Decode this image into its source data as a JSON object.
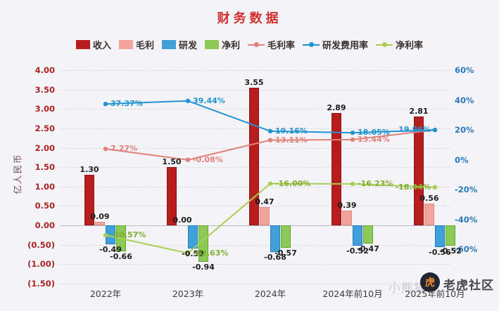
{
  "title": "财务数据",
  "watermark": {
    "faint_text": "小熊猫",
    "logo_text": "虎",
    "brand": "老虎社区"
  },
  "chart_data": {
    "type": "combo-bar-line",
    "categories": [
      "2022年",
      "2023年",
      "2024年",
      "2024年前10月",
      "2025年前10月"
    ],
    "y_left": {
      "title": "亿人民币",
      "min": -1.5,
      "max": 4.0,
      "ticks": [
        "4.00",
        "3.50",
        "3.00",
        "2.50",
        "2.00",
        "1.50",
        "1.00",
        "0.50",
        "0.00",
        "(0.50)",
        "(1.00)",
        "(1.50)"
      ]
    },
    "y_right": {
      "min": -60,
      "max": 60,
      "ticks": [
        "60%",
        "40%",
        "20%",
        "0%",
        "-20%",
        "-40%",
        "-60%"
      ]
    },
    "series": [
      {
        "key": "revenue",
        "name": "收入",
        "type": "bar",
        "axis": "left",
        "color": "#b81d1d",
        "border": "#8f1414",
        "values": [
          1.3,
          1.5,
          3.55,
          2.89,
          2.81
        ],
        "labels": [
          "1.30",
          "1.50",
          "3.55",
          "2.89",
          "2.81"
        ]
      },
      {
        "key": "gross-profit",
        "name": "毛利",
        "type": "bar",
        "axis": "left",
        "color": "#f2a49c",
        "border": "#dd8a82",
        "values": [
          0.09,
          0.0,
          0.47,
          0.39,
          0.56
        ],
        "labels": [
          "0.09",
          "0.00",
          "0.47",
          "0.39",
          "0.56"
        ]
      },
      {
        "key": "rnd",
        "name": "研发",
        "type": "bar",
        "axis": "left",
        "color": "#41a0d9",
        "border": "#1e7ec2",
        "values": [
          -0.49,
          -0.59,
          -0.68,
          -0.52,
          -0.56
        ],
        "labels": [
          "-0.49",
          "-0.59",
          "-0.68",
          "-0.52",
          "-0.56"
        ]
      },
      {
        "key": "net-profit",
        "name": "净利",
        "type": "bar",
        "axis": "left",
        "color": "#8cc957",
        "border": "#62a72e",
        "values": [
          -0.66,
          -0.94,
          -0.57,
          -0.47,
          -0.52
        ],
        "labels": [
          "-0.66",
          "-0.94",
          "-0.57",
          "-0.47",
          "-0.52"
        ]
      },
      {
        "key": "gross-margin",
        "name": "毛利率",
        "type": "line",
        "axis": "right",
        "color": "#e2807a",
        "values": [
          7.27,
          -0.08,
          13.11,
          13.44,
          19.93
        ],
        "labels": [
          "7.27%",
          "-0.08%",
          "13.11%",
          "13.44%",
          ""
        ]
      },
      {
        "key": "rnd-expense-rate",
        "name": "研发费用率",
        "type": "line",
        "axis": "right",
        "color": "#2193d1",
        "values": [
          37.37,
          39.44,
          19.16,
          18.05,
          19.96
        ],
        "labels": [
          "37.37%",
          "39.44%",
          "19.16%",
          "18.05%",
          "19.96%"
        ]
      },
      {
        "key": "net-margin",
        "name": "净利率",
        "type": "line",
        "axis": "right",
        "color": "#a9ce53",
        "values": [
          -50.57,
          -62.63,
          -16.0,
          -16.23,
          -18.44
        ],
        "labels": [
          "-50.57%",
          "-62.63%",
          "-16.00%",
          "-16.23%",
          "-18.44%"
        ]
      }
    ]
  }
}
